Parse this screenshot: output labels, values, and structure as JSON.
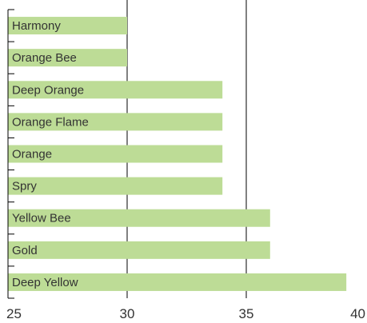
{
  "chart_data": {
    "type": "bar",
    "orientation": "horizontal",
    "categories": [
      "Harmony",
      "Orange Bee",
      "Deep Orange",
      "Orange Flame",
      "Orange",
      "Spry",
      "Yellow Bee",
      "Gold",
      "Deep Yellow"
    ],
    "values": [
      30,
      30,
      34,
      34,
      34,
      34,
      36,
      36,
      39.2
    ],
    "xlim": [
      25,
      40
    ],
    "xticks": [
      "25",
      "30",
      "35",
      "40"
    ],
    "title": "",
    "xlabel": "",
    "ylabel": "",
    "grid": "vertical",
    "bar_color": "#bddc96",
    "grid_color": "#000000"
  }
}
